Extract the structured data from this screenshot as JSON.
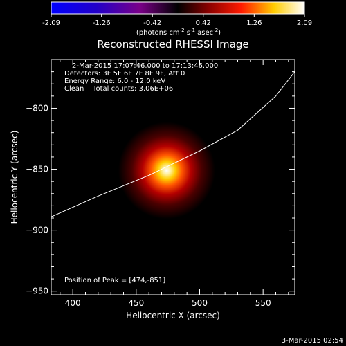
{
  "colors": {
    "background": "#000000",
    "foreground": "#ffffff"
  },
  "colorbar": {
    "ticks": [
      "-2.09",
      "-1.26",
      "-0.42",
      "0.42",
      "1.26",
      "2.09"
    ],
    "range": [
      -2.09,
      2.09
    ],
    "unit_prefix": "(photons cm",
    "unit_exp1": "-2",
    "unit_mid": " s",
    "unit_exp2": "-1",
    "unit_suffix": " asec",
    "unit_exp3": "-2",
    "unit_close": ")"
  },
  "chart_data": {
    "type": "heatmap",
    "title": "Reconstructed RHESSI Image",
    "xlabel": "Heliocentric X (arcsec)",
    "ylabel": "Heliocentric Y (arcsec)",
    "xlim": [
      383,
      575
    ],
    "ylim": [
      -953,
      -760
    ],
    "xticks": [
      400,
      450,
      500,
      550
    ],
    "yticks": [
      -800,
      -850,
      -900,
      -950
    ],
    "source": {
      "x": 474,
      "y": -851
    },
    "limb_curve": [
      [
        383,
        -889
      ],
      [
        420,
        -872
      ],
      [
        460,
        -855
      ],
      [
        500,
        -835
      ],
      [
        530,
        -818
      ],
      [
        560,
        -790
      ],
      [
        575,
        -770
      ]
    ],
    "annotations": {
      "time": "2-Mar-2015 17:07:46.000 to 17:13:46.000",
      "detectors": "Detectors: 3F 5F 6F 7F 8F 9F, Att 0",
      "energy": "Energy Range: 6.0 - 12.0 keV",
      "clean": "Clean    Total counts: 3.06E+06",
      "peak": "Position of Peak = [474,-851]"
    }
  },
  "footer": {
    "date": "3-Mar-2015 02:54"
  }
}
